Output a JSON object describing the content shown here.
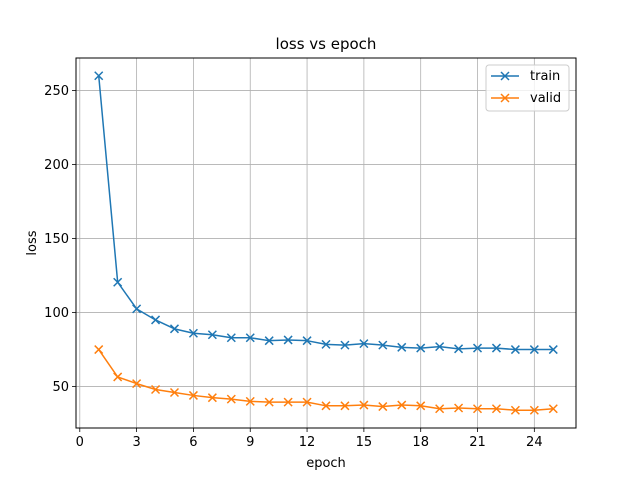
{
  "chart_data": {
    "type": "line",
    "title": "loss vs epoch",
    "xlabel": "epoch",
    "ylabel": "loss",
    "xlim": [
      -0.2,
      26.2
    ],
    "ylim": [
      22,
      272
    ],
    "xticks": [
      0,
      3,
      6,
      9,
      12,
      15,
      18,
      21,
      24
    ],
    "yticks": [
      50,
      100,
      150,
      200,
      250
    ],
    "grid": true,
    "legend_position": "top-right",
    "x": [
      1,
      2,
      3,
      4,
      5,
      6,
      7,
      8,
      9,
      10,
      11,
      12,
      13,
      14,
      15,
      16,
      17,
      18,
      19,
      20,
      21,
      22,
      23,
      24,
      25
    ],
    "series": [
      {
        "name": "train",
        "color": "#1f77b4",
        "marker": "x",
        "values": [
          260,
          120.5,
          102.5,
          95,
          89,
          86,
          85,
          83,
          83,
          81,
          81.5,
          81,
          78.5,
          78,
          79,
          78,
          76.5,
          76,
          77,
          75.5,
          76,
          76,
          75,
          75,
          75
        ]
      },
      {
        "name": "valid",
        "color": "#ff7f0e",
        "marker": "x",
        "values": [
          75,
          56.5,
          52,
          48,
          46,
          44,
          42.5,
          41.5,
          40,
          39.5,
          39.5,
          39.5,
          37,
          37,
          37.5,
          36.5,
          37.5,
          37,
          35,
          35.5,
          35,
          35,
          34,
          34,
          35
        ]
      }
    ]
  }
}
